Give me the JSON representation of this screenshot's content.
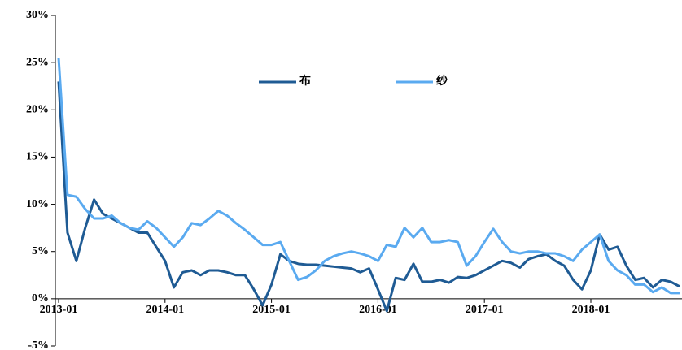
{
  "chart_data": {
    "type": "line",
    "categories": [
      "2013-01",
      null,
      null,
      null,
      null,
      null,
      null,
      null,
      null,
      null,
      null,
      null,
      "2014-01",
      null,
      null,
      null,
      null,
      null,
      null,
      null,
      null,
      null,
      null,
      null,
      "2015-01",
      null,
      null,
      null,
      null,
      null,
      null,
      null,
      null,
      null,
      null,
      null,
      "2016-01",
      null,
      null,
      null,
      null,
      null,
      null,
      null,
      null,
      null,
      null,
      null,
      "2017-01",
      null,
      null,
      null,
      null,
      null,
      null,
      null,
      null,
      null,
      null,
      null,
      "2018-01",
      null,
      null,
      null,
      null,
      null,
      null,
      null,
      null,
      null,
      null
    ],
    "series": [
      {
        "name": "布",
        "color": "#1f5b94",
        "values": [
          23,
          7,
          4,
          7.5,
          10.5,
          9,
          8.5,
          8,
          7.5,
          7,
          7,
          5.5,
          4,
          1.2,
          2.8,
          3,
          2.5,
          3,
          3,
          2.8,
          2.5,
          2.5,
          1,
          -0.7,
          1.5,
          4.7,
          4,
          3.7,
          3.6,
          3.6,
          3.5,
          3.4,
          3.3,
          3.2,
          2.8,
          3.2,
          1,
          -1.3,
          2.2,
          2,
          3.7,
          1.8,
          1.8,
          2,
          1.7,
          2.3,
          2.2,
          2.5,
          3,
          3.5,
          4,
          3.8,
          3.3,
          4.2,
          4.5,
          4.7,
          4,
          3.5,
          2,
          1,
          3,
          6.8,
          5.2,
          5.5,
          3.5,
          2,
          2.2,
          1.2,
          2,
          1.8,
          1.3
        ]
      },
      {
        "name": "纱",
        "color": "#5aaaf0",
        "values": [
          25.5,
          11,
          10.8,
          9.5,
          8.5,
          8.5,
          8.8,
          8,
          7.5,
          7.3,
          8.2,
          7.5,
          6.5,
          5.5,
          6.5,
          8,
          7.8,
          8.5,
          9.3,
          8.8,
          8,
          7.3,
          6.5,
          5.7,
          5.7,
          6,
          4,
          2,
          2.3,
          3,
          4,
          4.5,
          4.8,
          5,
          4.8,
          4.5,
          4,
          5.7,
          5.5,
          7.5,
          6.5,
          7.5,
          6,
          6,
          6.2,
          6,
          3.5,
          4.5,
          6,
          7.4,
          6,
          5,
          4.8,
          5,
          5,
          4.8,
          4.8,
          4.5,
          4,
          5.2,
          6,
          6.8,
          4,
          3,
          2.5,
          1.5,
          1.5,
          0.7,
          1.2,
          0.6,
          0.6
        ]
      }
    ],
    "ylim": [
      -5,
      30
    ],
    "yticks": [
      {
        "value": -5,
        "label": "-5%"
      },
      {
        "value": 0,
        "label": "0%"
      },
      {
        "value": 5,
        "label": "5%"
      },
      {
        "value": 10,
        "label": "10%"
      },
      {
        "value": 15,
        "label": "15%"
      },
      {
        "value": 20,
        "label": "20%"
      },
      {
        "value": 25,
        "label": "25%"
      },
      {
        "value": 30,
        "label": "30%"
      }
    ],
    "legend": "top-center"
  }
}
